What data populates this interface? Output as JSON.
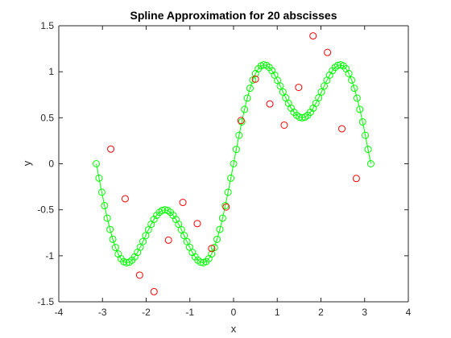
{
  "chart_data": {
    "type": "line",
    "title": "Spline Approximation for 20 abscisses",
    "xlabel": "x",
    "ylabel": "y",
    "xlim": [
      -4,
      4
    ],
    "ylim": [
      -1.5,
      1.5
    ],
    "xticks": [
      -4,
      -3,
      -2,
      -1,
      0,
      1,
      2,
      3,
      4
    ],
    "yticks": [
      -1.5,
      -1,
      -0.5,
      0,
      0.5,
      1,
      1.5
    ],
    "xtick_labels": [
      "-4",
      "-3",
      "-2",
      "-1",
      "0",
      "1",
      "2",
      "3",
      "4"
    ],
    "ytick_labels": [
      "-1.5",
      "-1",
      "-0.5",
      "0",
      "0.5",
      "1",
      "1.5"
    ],
    "grid": false,
    "series": [
      {
        "marker": "circle",
        "color": "#00ff00",
        "linestyle": "solid",
        "x_start": -3.1416,
        "x_end": 3.1416,
        "point_count": 101,
        "x": [
          -3.1416,
          3.1416
        ],
        "y": [
          0,
          0
        ]
      },
      {
        "marker": "circle",
        "color": "#ff0000",
        "linestyle": "none",
        "x": [
          -2.81,
          -2.48,
          -2.15,
          -1.82,
          -1.49,
          -1.16,
          -0.83,
          -0.5,
          -0.17,
          0.17,
          0.5,
          0.83,
          1.16,
          1.49,
          1.82,
          2.15,
          2.48,
          2.81
        ],
        "y": [
          0.16,
          -0.38,
          -1.21,
          -1.39,
          -0.83,
          -0.42,
          -0.65,
          -0.92,
          -0.47,
          0.47,
          0.92,
          0.65,
          0.42,
          0.83,
          1.39,
          1.21,
          0.38,
          -0.16
        ]
      }
    ]
  },
  "colors": {
    "axes": "#262626",
    "spline": "#00ff00",
    "nodes": "#ff0000",
    "background": "#ffffff"
  }
}
